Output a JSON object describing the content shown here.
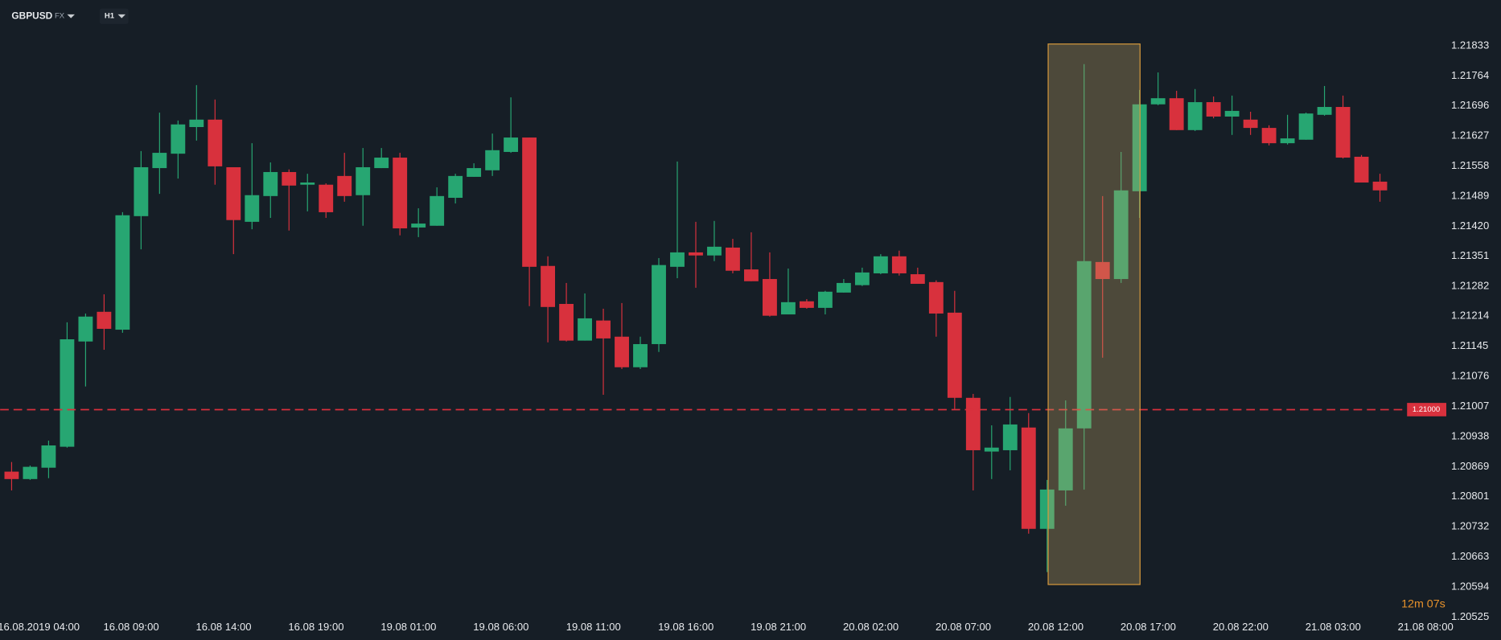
{
  "header": {
    "symbol": "GBPUSD",
    "market": "FX",
    "timeframe": "H1"
  },
  "chart_data": {
    "type": "candlestick",
    "categories": [
      null,
      "16.08.2019 04:00",
      null,
      null,
      null,
      null,
      "16.08 09:00",
      null,
      null,
      null,
      null,
      "16.08 14:00",
      null,
      null,
      null,
      null,
      "16.08 19:00",
      null,
      null,
      null,
      null,
      "19.08 01:00",
      null,
      null,
      null,
      null,
      "19.08 06:00",
      null,
      null,
      null,
      null,
      "19.08 11:00",
      null,
      null,
      null,
      null,
      "19.08 16:00",
      null,
      null,
      null,
      null,
      "19.08 21:00",
      null,
      null,
      null,
      null,
      "20.08 02:00",
      null,
      null,
      null,
      null,
      "20.08 07:00",
      null,
      null,
      null,
      null,
      "20.08 12:00",
      null,
      null,
      null,
      null,
      "20.08 17:00",
      null,
      null,
      null,
      null,
      "20.08 22:00",
      null,
      null,
      null,
      null,
      "21.08 03:00",
      null,
      null,
      null,
      null,
      "21.08 08:00"
    ],
    "open": [
      1.20858,
      1.20841,
      1.20867,
      1.20915,
      1.21156,
      1.21224,
      1.21183,
      1.21443,
      1.21553,
      1.21586,
      1.21647,
      1.21664,
      1.21555,
      1.2143,
      1.21489,
      1.21544,
      1.21515,
      1.21515,
      1.21535,
      1.21491,
      1.21553,
      1.21577,
      1.21417,
      1.21421,
      1.21485,
      1.21533,
      1.21548,
      1.2159,
      1.21623,
      1.21329,
      1.21242,
      1.21158,
      1.21204,
      1.21167,
      1.21097,
      1.2115,
      1.21327,
      1.2136,
      1.21353,
      1.21371,
      1.21321,
      1.21299,
      1.21218,
      1.21248,
      1.21233,
      1.21268,
      1.21285,
      1.21312,
      1.21351,
      1.2131,
      1.21292,
      1.21222,
      1.21027,
      1.20904,
      1.20907,
      1.20959,
      1.20727,
      1.20815,
      1.20957,
      1.21338,
      1.21299,
      1.215,
      1.21699,
      1.21713,
      1.2164,
      1.21704,
      1.21671,
      1.21664,
      1.21645,
      1.2161,
      1.21618,
      1.21675,
      1.21693,
      1.21579,
      1.21522,
      null,
      null
    ],
    "high": [
      1.2088,
      1.20872,
      1.20929,
      1.212,
      1.2122,
      1.21264,
      1.21452,
      1.21592,
      1.2168,
      1.21662,
      1.21743,
      1.2171,
      1.21555,
      1.2161,
      1.21566,
      1.2155,
      1.2154,
      1.21518,
      1.21588,
      1.21599,
      1.21599,
      1.21588,
      1.21461,
      1.21509,
      1.2154,
      1.21564,
      1.21632,
      1.21715,
      1.21623,
      1.21351,
      1.2129,
      1.21266,
      1.21231,
      1.21244,
      1.21167,
      1.21347,
      1.21568,
      1.2143,
      1.21432,
      1.21391,
      1.21406,
      1.2136,
      1.21323,
      1.21253,
      1.21272,
      1.21299,
      1.21325,
      1.21356,
      1.21364,
      1.21325,
      1.21296,
      1.21272,
      1.21036,
      1.20964,
      1.21029,
      1.20992,
      1.20839,
      1.21021,
      1.21791,
      1.21489,
      1.2159,
      1.21732,
      1.21772,
      1.2173,
      1.21734,
      1.21717,
      1.21719,
      1.21682,
      1.21651,
      1.21675,
      1.2168,
      1.21741,
      1.21719,
      1.21583,
      1.2154,
      null,
      null
    ],
    "low": [
      1.20815,
      1.20839,
      1.20843,
      1.20913,
      1.21053,
      1.21137,
      1.21176,
      1.21367,
      1.21494,
      1.21529,
      1.21616,
      1.21515,
      1.21356,
      1.21413,
      1.21439,
      1.2141,
      1.21454,
      1.21439,
      1.21476,
      1.21421,
      1.21553,
      1.21399,
      1.21395,
      1.21421,
      1.21472,
      1.21533,
      1.21535,
      1.21588,
      1.21237,
      1.21154,
      1.21156,
      1.21158,
      1.21034,
      1.21093,
      1.21093,
      1.21132,
      1.21301,
      1.21279,
      1.2134,
      1.21312,
      1.21294,
      1.21213,
      1.21218,
      1.21231,
      1.21218,
      1.21268,
      1.21283,
      1.2131,
      1.21307,
      1.21288,
      1.21167,
      1.21001,
      1.20815,
      1.20841,
      1.20861,
      1.20716,
      1.20628,
      1.2078,
      1.20817,
      1.21119,
      1.2129,
      1.21439,
      1.21697,
      1.2164,
      1.21638,
      1.21667,
      1.21629,
      1.21629,
      1.21605,
      1.21607,
      1.21618,
      1.21673,
      1.21575,
      1.2152,
      1.21476,
      null,
      null
    ],
    "close": [
      1.20841,
      1.20869,
      1.20918,
      1.21161,
      1.21213,
      1.21185,
      1.21445,
      1.21555,
      1.21588,
      1.21653,
      1.21664,
      1.21557,
      1.21434,
      1.21491,
      1.21544,
      1.21513,
      1.2152,
      1.21452,
      1.21489,
      1.21555,
      1.21577,
      1.21415,
      1.21426,
      1.21489,
      1.21535,
      1.21553,
      1.21594,
      1.21623,
      1.21327,
      1.21235,
      1.21158,
      1.21209,
      1.21163,
      1.21097,
      1.2115,
      1.21331,
      1.2136,
      1.21353,
      1.21373,
      1.21318,
      1.21294,
      1.21215,
      1.21246,
      1.21233,
      1.2127,
      1.2129,
      1.21314,
      1.21351,
      1.21312,
      1.21288,
      1.2122,
      1.21027,
      1.20907,
      1.20913,
      1.20966,
      1.20727,
      1.20817,
      1.20957,
      1.2134,
      1.21299,
      1.21502,
      1.21699,
      1.21713,
      1.2164,
      1.21704,
      1.21671,
      1.21684,
      1.21645,
      1.2161,
      1.21621,
      1.21678,
      1.21693,
      1.21577,
      1.2152,
      1.21502,
      null,
      null
    ],
    "up_color": "#27a672",
    "down_color": "#d8313d",
    "ylim": [
      1.2049,
      1.2187
    ],
    "yticks": [
      1.21833,
      1.21764,
      1.21696,
      1.21627,
      1.21558,
      1.21489,
      {
        "value": 1.2142,
        "label": "1.21420"
      },
      1.21351,
      1.21282,
      1.21214,
      1.21145,
      1.21076,
      1.21007,
      1.20938,
      1.20869,
      1.20801,
      1.20732,
      1.20663,
      1.20594,
      1.20525
    ],
    "price_line": {
      "value": 1.21,
      "label": "1.21000",
      "color": "#d8313d"
    },
    "countdown": "12m 07s"
  }
}
